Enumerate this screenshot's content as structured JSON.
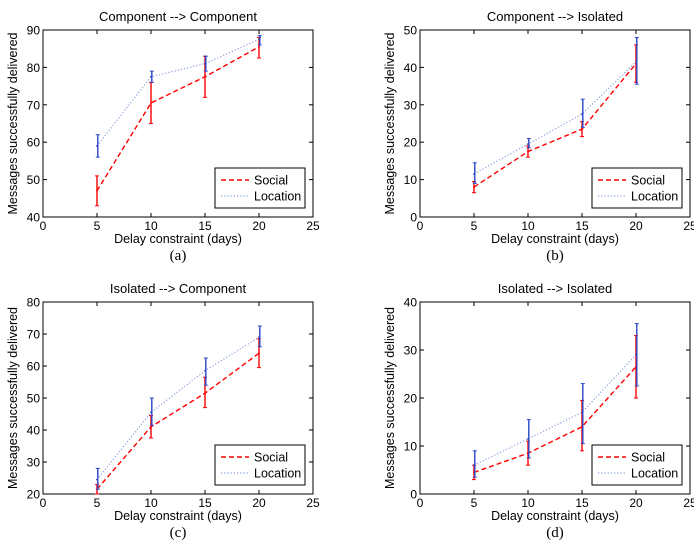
{
  "colors": {
    "social": "#ff0000",
    "location": "#8a9fe0",
    "location_errorbar": "#2a46c8",
    "axis": "#000000"
  },
  "chart_data": [
    {
      "type": "line",
      "title": "Component --> Component",
      "caption": "(a)",
      "xlabel": "Delay constraint (days)",
      "ylabel": "Messages successfully delivered",
      "xlim": [
        0,
        25
      ],
      "ylim": [
        40,
        90
      ],
      "xticks": [
        "0",
        "5",
        "10",
        "15",
        "20",
        "25"
      ],
      "yticks": [
        "40",
        "50",
        "60",
        "70",
        "80",
        "90"
      ],
      "grid": false,
      "legend_position": "bottom-right",
      "x": [
        5,
        10,
        15,
        20
      ],
      "series": [
        {
          "name": "Social",
          "style": "dashed",
          "values": [
            47,
            70.5,
            77.5,
            85.5
          ],
          "err_low": [
            43,
            65,
            72,
            82.5
          ],
          "err_high": [
            51,
            76,
            83,
            88
          ]
        },
        {
          "name": "Location",
          "style": "dotted",
          "values": [
            59,
            77.5,
            81,
            87.5
          ],
          "err_low": [
            56,
            76,
            79,
            86
          ],
          "err_high": [
            62,
            79,
            83,
            88.5
          ]
        }
      ]
    },
    {
      "type": "line",
      "title": "Component --> Isolated",
      "caption": "(b)",
      "xlabel": "Delay constraint (days)",
      "ylabel": "Messages successfully delivered",
      "xlim": [
        0,
        25
      ],
      "ylim": [
        0,
        50
      ],
      "xticks": [
        "0",
        "5",
        "10",
        "15",
        "20",
        "25"
      ],
      "yticks": [
        "0",
        "10",
        "20",
        "30",
        "40",
        "50"
      ],
      "grid": false,
      "legend_position": "bottom-right",
      "x": [
        5,
        10,
        15,
        20
      ],
      "series": [
        {
          "name": "Social",
          "style": "dashed",
          "values": [
            8,
            17.5,
            23.5,
            41
          ],
          "err_low": [
            6.5,
            16,
            21.5,
            36
          ],
          "err_high": [
            9.5,
            19,
            25.5,
            46
          ]
        },
        {
          "name": "Location",
          "style": "dotted",
          "values": [
            11.5,
            19.5,
            27.5,
            41.5
          ],
          "err_low": [
            9,
            18.5,
            24,
            35.5
          ],
          "err_high": [
            14.5,
            21,
            31.5,
            48
          ]
        }
      ]
    },
    {
      "type": "line",
      "title": "Isolated --> Component",
      "caption": "(c)",
      "xlabel": "Delay constraint (days)",
      "ylabel": "Messages successfully delivered",
      "xlim": [
        0,
        25
      ],
      "ylim": [
        20,
        80
      ],
      "xticks": [
        "0",
        "5",
        "10",
        "15",
        "20",
        "25"
      ],
      "yticks": [
        "20",
        "30",
        "40",
        "50",
        "60",
        "70",
        "80"
      ],
      "grid": false,
      "legend_position": "bottom-right",
      "x": [
        5,
        10,
        15,
        20
      ],
      "series": [
        {
          "name": "Social",
          "style": "dashed",
          "values": [
            21.5,
            41,
            51.5,
            64
          ],
          "err_low": [
            20,
            37.5,
            47,
            59.5
          ],
          "err_high": [
            23,
            44.5,
            56.5,
            68.5
          ]
        },
        {
          "name": "Location",
          "style": "dotted",
          "values": [
            24.5,
            45.5,
            58.5,
            69
          ],
          "err_low": [
            21.5,
            41.5,
            54,
            66
          ],
          "err_high": [
            28,
            50,
            62.5,
            72.5
          ]
        }
      ]
    },
    {
      "type": "line",
      "title": "Isolated --> Isolated",
      "caption": "(d)",
      "xlabel": "Delay constraint (days)",
      "ylabel": "Messages successfully delivered",
      "xlim": [
        0,
        25
      ],
      "ylim": [
        0,
        40
      ],
      "xticks": [
        "0",
        "5",
        "10",
        "15",
        "20",
        "25"
      ],
      "yticks": [
        "0",
        "10",
        "20",
        "30",
        "40"
      ],
      "grid": false,
      "legend_position": "bottom-right",
      "x": [
        5,
        10,
        15,
        20
      ],
      "series": [
        {
          "name": "Social",
          "style": "dashed",
          "values": [
            4.5,
            8.5,
            14,
            26.5
          ],
          "err_low": [
            3,
            6,
            9,
            20
          ],
          "err_high": [
            6,
            11,
            19.5,
            33
          ]
        },
        {
          "name": "Location",
          "style": "dotted",
          "values": [
            6,
            11.5,
            17,
            29
          ],
          "err_low": [
            3.5,
            7.5,
            10.5,
            22.5
          ],
          "err_high": [
            9,
            15.5,
            23,
            35.5
          ]
        }
      ]
    }
  ]
}
